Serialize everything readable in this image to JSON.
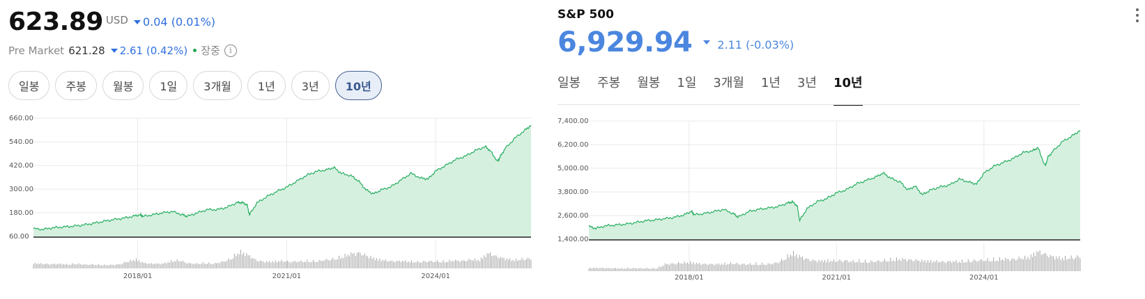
{
  "left": {
    "price": "623.89",
    "currency": "USD",
    "change": "0.04 (0.01%)",
    "premarket_label": "Pre Market",
    "premarket_value": "621.28",
    "premarket_change": "2.61 (0.42%)",
    "status": "장중",
    "info_icon": "info-icon",
    "ranges": [
      "일봉",
      "주봉",
      "월봉",
      "1일",
      "3개월",
      "1년",
      "3년",
      "10년"
    ],
    "active_range": "10년"
  },
  "right": {
    "title": "S&P 500",
    "price": "6,929.94",
    "change": "2.11 (-0.03%)",
    "menu_icon": "kebab-menu-icon",
    "tabs": [
      "일봉",
      "주봉",
      "월봉",
      "1일",
      "3개월",
      "1년",
      "3년",
      "10년"
    ],
    "active_tab": "10년"
  },
  "colors": {
    "line": "#27ae60",
    "fill": "#d6f0e0",
    "down": "#2f6fde",
    "volume": "#9a9a9a",
    "grid": "#e9e9e9"
  },
  "chart_data": [
    {
      "type": "area",
      "y_ticks": [
        "660.00",
        "540.00",
        "420.00",
        "300.00",
        "180.00",
        "60.00"
      ],
      "y_tick_values": [
        660,
        540,
        420,
        300,
        180,
        60
      ],
      "x_ticks": [
        "2018/01",
        "2021/01",
        "2024/01"
      ],
      "x_tick_values": [
        2018.0,
        2021.0,
        2024.0
      ],
      "ylim": [
        60,
        660
      ],
      "xlim": [
        2015.9,
        2025.92
      ],
      "grid": true,
      "series": [
        {
          "x": [
            2015.9,
            2016.1,
            2016.3,
            2016.5,
            2016.7,
            2016.9,
            2017.1,
            2017.3,
            2017.5,
            2017.7,
            2017.9,
            2018.05,
            2018.1,
            2018.3,
            2018.5,
            2018.7,
            2018.9,
            2019.0,
            2019.2,
            2019.4,
            2019.6,
            2019.8,
            2020.0,
            2020.1,
            2020.2,
            2020.25,
            2020.4,
            2020.6,
            2020.8,
            2021.0,
            2021.2,
            2021.4,
            2021.6,
            2021.8,
            2021.95,
            2022.1,
            2022.3,
            2022.45,
            2022.6,
            2022.75,
            2022.9,
            2023.1,
            2023.3,
            2023.5,
            2023.7,
            2023.85,
            2024.0,
            2024.2,
            2024.4,
            2024.6,
            2024.8,
            2025.0,
            2025.1,
            2025.25,
            2025.3,
            2025.4,
            2025.6,
            2025.8,
            2025.92
          ],
          "y": [
            99,
            96,
            104,
            108,
            112,
            118,
            126,
            136,
            145,
            152,
            162,
            171,
            162,
            170,
            180,
            186,
            170,
            162,
            180,
            196,
            196,
            208,
            232,
            232,
            222,
            170,
            230,
            262,
            288,
            310,
            340,
            370,
            390,
            398,
            410,
            380,
            368,
            340,
            296,
            276,
            296,
            312,
            346,
            380,
            356,
            352,
            392,
            420,
            450,
            468,
            496,
            516,
            494,
            440,
            466,
            506,
            560,
            600,
            624
          ]
        }
      ],
      "volume": [
        0.22,
        0.2,
        0.18,
        0.2,
        0.17,
        0.2,
        0.16,
        0.17,
        0.15,
        0.15,
        0.17,
        0.3,
        0.38,
        0.22,
        0.2,
        0.2,
        0.3,
        0.35,
        0.22,
        0.2,
        0.24,
        0.2,
        0.28,
        0.4,
        0.72,
        0.58,
        0.34,
        0.28,
        0.3,
        0.32,
        0.28,
        0.3,
        0.32,
        0.3,
        0.36,
        0.4,
        0.5,
        0.62,
        0.66,
        0.52,
        0.4,
        0.34,
        0.3,
        0.32,
        0.3,
        0.28,
        0.3,
        0.3,
        0.3,
        0.34,
        0.32,
        0.38,
        0.36,
        0.66,
        0.5,
        0.42,
        0.36,
        0.4,
        0.42
      ]
    },
    {
      "type": "area",
      "title": "S&P 500",
      "y_ticks": [
        "7,400.00",
        "6,200.00",
        "5,000.00",
        "3,800.00",
        "2,600.00",
        "1,400.00"
      ],
      "y_tick_values": [
        7400,
        6200,
        5000,
        3800,
        2600,
        1400
      ],
      "x_ticks": [
        "2018/01",
        "2021/01",
        "2024/01"
      ],
      "x_tick_values": [
        2018.0,
        2021.0,
        2024.0
      ],
      "ylim": [
        1400,
        7400
      ],
      "xlim": [
        2015.96,
        2025.96
      ],
      "grid": true,
      "series": [
        {
          "x": [
            2015.96,
            2016.1,
            2016.3,
            2016.5,
            2016.7,
            2016.9,
            2017.1,
            2017.3,
            2017.5,
            2017.7,
            2017.9,
            2018.05,
            2018.1,
            2018.3,
            2018.5,
            2018.7,
            2018.9,
            2019.0,
            2019.2,
            2019.4,
            2019.6,
            2019.8,
            2020.0,
            2020.1,
            2020.2,
            2020.25,
            2020.4,
            2020.6,
            2020.8,
            2021.0,
            2021.2,
            2021.4,
            2021.6,
            2021.8,
            2021.95,
            2022.1,
            2022.3,
            2022.45,
            2022.6,
            2022.75,
            2022.9,
            2023.1,
            2023.3,
            2023.5,
            2023.7,
            2023.85,
            2024.0,
            2024.2,
            2024.4,
            2024.6,
            2024.8,
            2025.0,
            2025.1,
            2025.25,
            2025.3,
            2025.4,
            2025.6,
            2025.8,
            2025.96
          ],
          "y": [
            2050,
            1950,
            2080,
            2120,
            2160,
            2240,
            2330,
            2380,
            2440,
            2510,
            2640,
            2820,
            2640,
            2700,
            2800,
            2910,
            2700,
            2520,
            2790,
            2910,
            2980,
            3050,
            3230,
            3300,
            3100,
            2350,
            2950,
            3300,
            3460,
            3750,
            3910,
            4200,
            4380,
            4560,
            4760,
            4500,
            4300,
            3900,
            4100,
            3650,
            3880,
            4050,
            4150,
            4450,
            4300,
            4200,
            4750,
            5100,
            5300,
            5500,
            5800,
            5900,
            6050,
            5100,
            5550,
            5850,
            6350,
            6650,
            6930
          ]
        }
      ],
      "volume": [
        0.14,
        0.14,
        0.13,
        0.13,
        0.12,
        0.13,
        0.12,
        0.12,
        0.12,
        0.3,
        0.32,
        0.36,
        0.38,
        0.32,
        0.3,
        0.3,
        0.32,
        0.34,
        0.3,
        0.3,
        0.32,
        0.3,
        0.34,
        0.5,
        0.78,
        0.62,
        0.48,
        0.44,
        0.46,
        0.44,
        0.46,
        0.42,
        0.44,
        0.4,
        0.42,
        0.46,
        0.5,
        0.52,
        0.48,
        0.46,
        0.44,
        0.42,
        0.4,
        0.42,
        0.42,
        0.44,
        0.46,
        0.48,
        0.5,
        0.52,
        0.5,
        0.56,
        0.6,
        0.85,
        0.7,
        0.6,
        0.56,
        0.58,
        0.62
      ]
    }
  ]
}
